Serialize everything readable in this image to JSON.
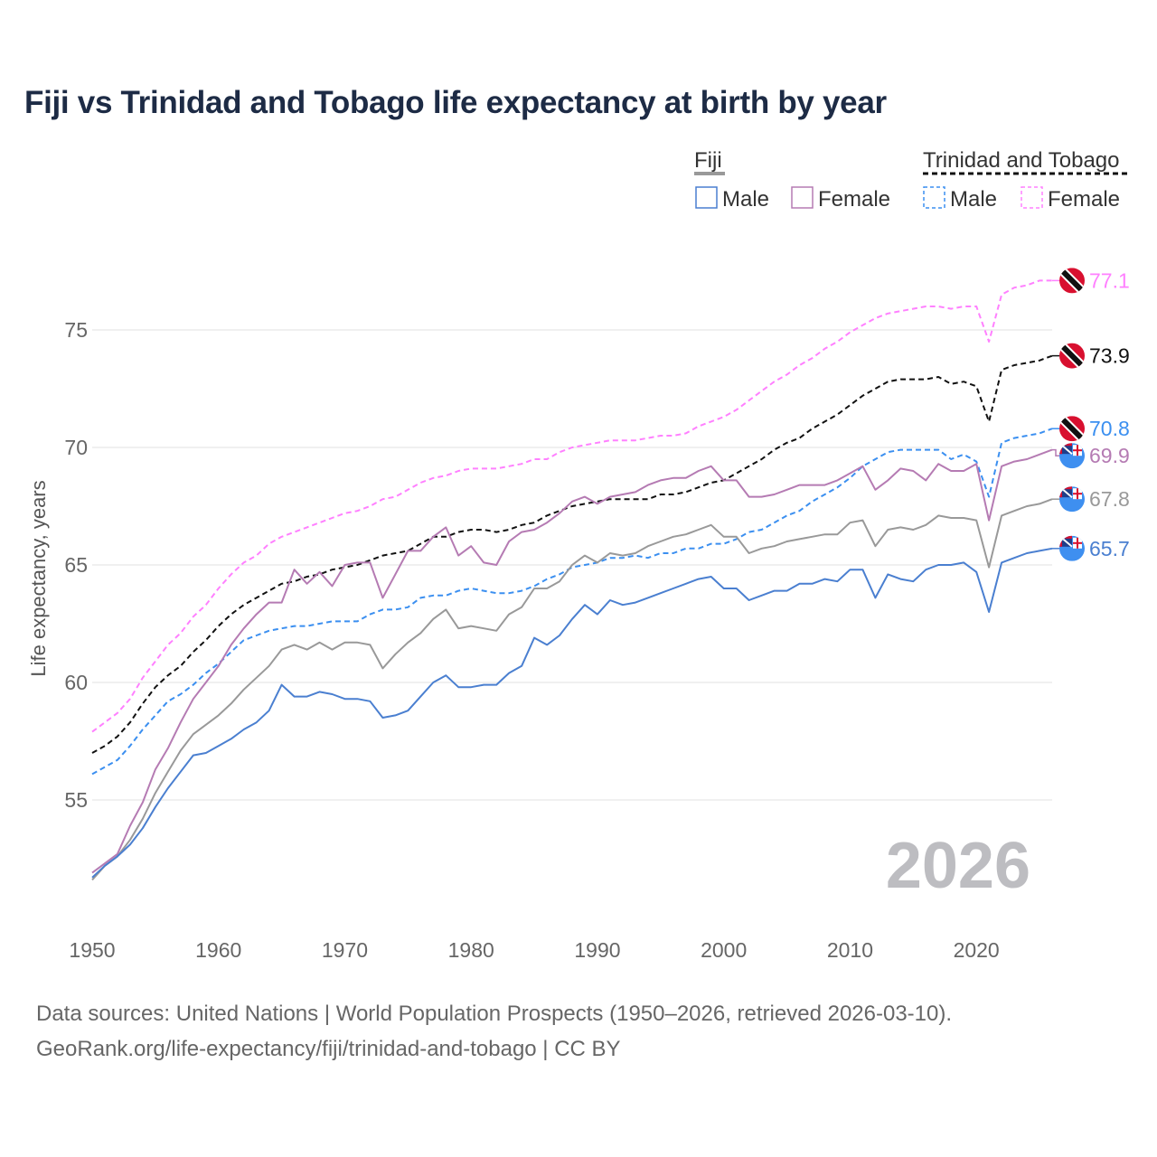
{
  "title": "Fiji vs Trinidad and Tobago life expectancy at birth by year",
  "sources": [
    "Data sources: United Nations | World Population Prospects (1950–2026, retrieved 2026-03-10).",
    "GeoRank.org/life-expectancy/fiji/trinidad-and-tobago | CC BY"
  ],
  "watermark_year": "2026",
  "chart_data": {
    "type": "line",
    "title": "Fiji vs Trinidad and Tobago life expectancy at birth by year",
    "xlabel": "",
    "ylabel": "Life expectancy, years",
    "xlim": [
      1950,
      2026
    ],
    "ylim": [
      50.5,
      78
    ],
    "x_ticks": [
      1950,
      1960,
      1970,
      1980,
      1990,
      2000,
      2010,
      2020
    ],
    "y_ticks": [
      55,
      60,
      65,
      70,
      75
    ],
    "grid": true,
    "legend_placement": "top-right",
    "legend_groups": [
      {
        "name": "Fiji",
        "items": [
          "Male",
          "Female"
        ]
      },
      {
        "name": "Trinidad and Tobago",
        "items": [
          "Male",
          "Female"
        ]
      }
    ],
    "x_start": 1950,
    "series": [
      {
        "name": "Trinidad and Tobago Female",
        "country": "tt",
        "color": "#ff80ff",
        "dashed": true,
        "end_label": "77.1",
        "values": [
          57.9,
          58.3,
          58.7,
          59.3,
          60.2,
          60.9,
          61.6,
          62.1,
          62.8,
          63.3,
          64.0,
          64.6,
          65.1,
          65.4,
          65.9,
          66.2,
          66.4,
          66.6,
          66.8,
          67.0,
          67.2,
          67.3,
          67.5,
          67.8,
          67.9,
          68.2,
          68.5,
          68.7,
          68.8,
          69.0,
          69.1,
          69.1,
          69.1,
          69.2,
          69.3,
          69.5,
          69.5,
          69.8,
          70.0,
          70.1,
          70.2,
          70.3,
          70.3,
          70.3,
          70.4,
          70.5,
          70.5,
          70.6,
          70.9,
          71.1,
          71.3,
          71.6,
          72.0,
          72.4,
          72.8,
          73.1,
          73.5,
          73.8,
          74.2,
          74.5,
          74.9,
          75.2,
          75.5,
          75.7,
          75.8,
          75.9,
          76.0,
          76.0,
          75.9,
          76.0,
          76.0,
          74.5,
          76.5,
          76.8,
          76.9,
          77.1,
          77.1
        ]
      },
      {
        "name": "Trinidad and Tobago",
        "country": "tt",
        "color": "#111111",
        "dashed": true,
        "end_label": "73.9",
        "values": [
          57.0,
          57.3,
          57.7,
          58.3,
          59.1,
          59.8,
          60.3,
          60.7,
          61.3,
          61.8,
          62.4,
          62.9,
          63.3,
          63.6,
          63.9,
          64.2,
          64.3,
          64.5,
          64.6,
          64.8,
          64.9,
          65.0,
          65.2,
          65.4,
          65.5,
          65.6,
          65.9,
          66.2,
          66.2,
          66.4,
          66.5,
          66.5,
          66.4,
          66.5,
          66.7,
          66.8,
          67.1,
          67.3,
          67.5,
          67.6,
          67.7,
          67.8,
          67.8,
          67.8,
          67.8,
          68.0,
          68.0,
          68.1,
          68.3,
          68.5,
          68.6,
          68.9,
          69.2,
          69.5,
          69.9,
          70.2,
          70.4,
          70.8,
          71.1,
          71.4,
          71.8,
          72.2,
          72.5,
          72.8,
          72.9,
          72.9,
          72.9,
          73.0,
          72.7,
          72.8,
          72.6,
          71.1,
          73.3,
          73.5,
          73.6,
          73.7,
          73.9
        ]
      },
      {
        "name": "Trinidad and Tobago Male",
        "country": "tt",
        "color": "#3b8ff0",
        "dashed": true,
        "end_label": "70.8",
        "values": [
          56.1,
          56.4,
          56.7,
          57.3,
          58.0,
          58.6,
          59.2,
          59.5,
          59.9,
          60.4,
          60.8,
          61.3,
          61.8,
          62.0,
          62.2,
          62.3,
          62.4,
          62.4,
          62.5,
          62.6,
          62.6,
          62.6,
          62.9,
          63.1,
          63.1,
          63.2,
          63.6,
          63.7,
          63.7,
          63.9,
          64.0,
          63.9,
          63.8,
          63.8,
          63.9,
          64.1,
          64.4,
          64.6,
          64.9,
          65.0,
          65.1,
          65.3,
          65.3,
          65.4,
          65.3,
          65.5,
          65.5,
          65.7,
          65.7,
          65.9,
          65.9,
          66.1,
          66.4,
          66.5,
          66.8,
          67.1,
          67.3,
          67.7,
          68.0,
          68.3,
          68.7,
          69.2,
          69.5,
          69.8,
          69.9,
          69.9,
          69.9,
          69.9,
          69.5,
          69.7,
          69.4,
          67.9,
          70.2,
          70.4,
          70.5,
          70.6,
          70.8
        ]
      },
      {
        "name": "Fiji Female",
        "country": "fj",
        "color": "#b57bb3",
        "dashed": false,
        "end_label": "69.9",
        "values": [
          51.9,
          52.3,
          52.7,
          53.9,
          54.9,
          56.3,
          57.2,
          58.3,
          59.3,
          60.0,
          60.7,
          61.6,
          62.3,
          62.9,
          63.4,
          63.4,
          64.8,
          64.2,
          64.7,
          64.1,
          65.0,
          65.1,
          65.1,
          63.6,
          64.6,
          65.6,
          65.6,
          66.2,
          66.6,
          65.4,
          65.8,
          65.1,
          65.0,
          66.0,
          66.4,
          66.5,
          66.8,
          67.2,
          67.7,
          67.9,
          67.6,
          67.9,
          68.0,
          68.1,
          68.4,
          68.6,
          68.7,
          68.7,
          69.0,
          69.2,
          68.6,
          68.6,
          67.9,
          67.9,
          68.0,
          68.2,
          68.4,
          68.4,
          68.4,
          68.6,
          68.9,
          69.2,
          68.2,
          68.6,
          69.1,
          69.0,
          68.6,
          69.3,
          69.0,
          69.0,
          69.3,
          66.9,
          69.2,
          69.4,
          69.5,
          69.7,
          69.9
        ]
      },
      {
        "name": "Fiji",
        "country": "fj",
        "color": "#999999",
        "dashed": false,
        "end_label": "67.8",
        "values": [
          51.6,
          52.2,
          52.6,
          53.3,
          54.2,
          55.3,
          56.2,
          57.1,
          57.8,
          58.2,
          58.6,
          59.1,
          59.7,
          60.2,
          60.7,
          61.4,
          61.6,
          61.4,
          61.7,
          61.4,
          61.7,
          61.7,
          61.6,
          60.6,
          61.2,
          61.7,
          62.1,
          62.7,
          63.1,
          62.3,
          62.4,
          62.3,
          62.2,
          62.9,
          63.2,
          64.0,
          64.0,
          64.3,
          65.0,
          65.4,
          65.1,
          65.5,
          65.4,
          65.5,
          65.8,
          66.0,
          66.2,
          66.3,
          66.5,
          66.7,
          66.2,
          66.2,
          65.5,
          65.7,
          65.8,
          66.0,
          66.1,
          66.2,
          66.3,
          66.3,
          66.8,
          66.9,
          65.8,
          66.5,
          66.6,
          66.5,
          66.7,
          67.1,
          67.0,
          67.0,
          66.9,
          64.9,
          67.1,
          67.3,
          67.5,
          67.6,
          67.8
        ]
      },
      {
        "name": "Fiji Male",
        "country": "fj",
        "color": "#4a7fd0",
        "dashed": false,
        "end_label": "65.7",
        "values": [
          51.7,
          52.2,
          52.6,
          53.1,
          53.8,
          54.7,
          55.5,
          56.2,
          56.9,
          57.0,
          57.3,
          57.6,
          58.0,
          58.3,
          58.8,
          59.9,
          59.4,
          59.4,
          59.6,
          59.5,
          59.3,
          59.3,
          59.2,
          58.5,
          58.6,
          58.8,
          59.4,
          60.0,
          60.3,
          59.8,
          59.8,
          59.9,
          59.9,
          60.4,
          60.7,
          61.9,
          61.6,
          62.0,
          62.7,
          63.3,
          62.9,
          63.5,
          63.3,
          63.4,
          63.6,
          63.8,
          64.0,
          64.2,
          64.4,
          64.5,
          64.0,
          64.0,
          63.5,
          63.7,
          63.9,
          63.9,
          64.2,
          64.2,
          64.4,
          64.3,
          64.8,
          64.8,
          63.6,
          64.6,
          64.4,
          64.3,
          64.8,
          65.0,
          65.0,
          65.1,
          64.7,
          63.0,
          65.1,
          65.3,
          65.5,
          65.6,
          65.7
        ]
      }
    ]
  }
}
